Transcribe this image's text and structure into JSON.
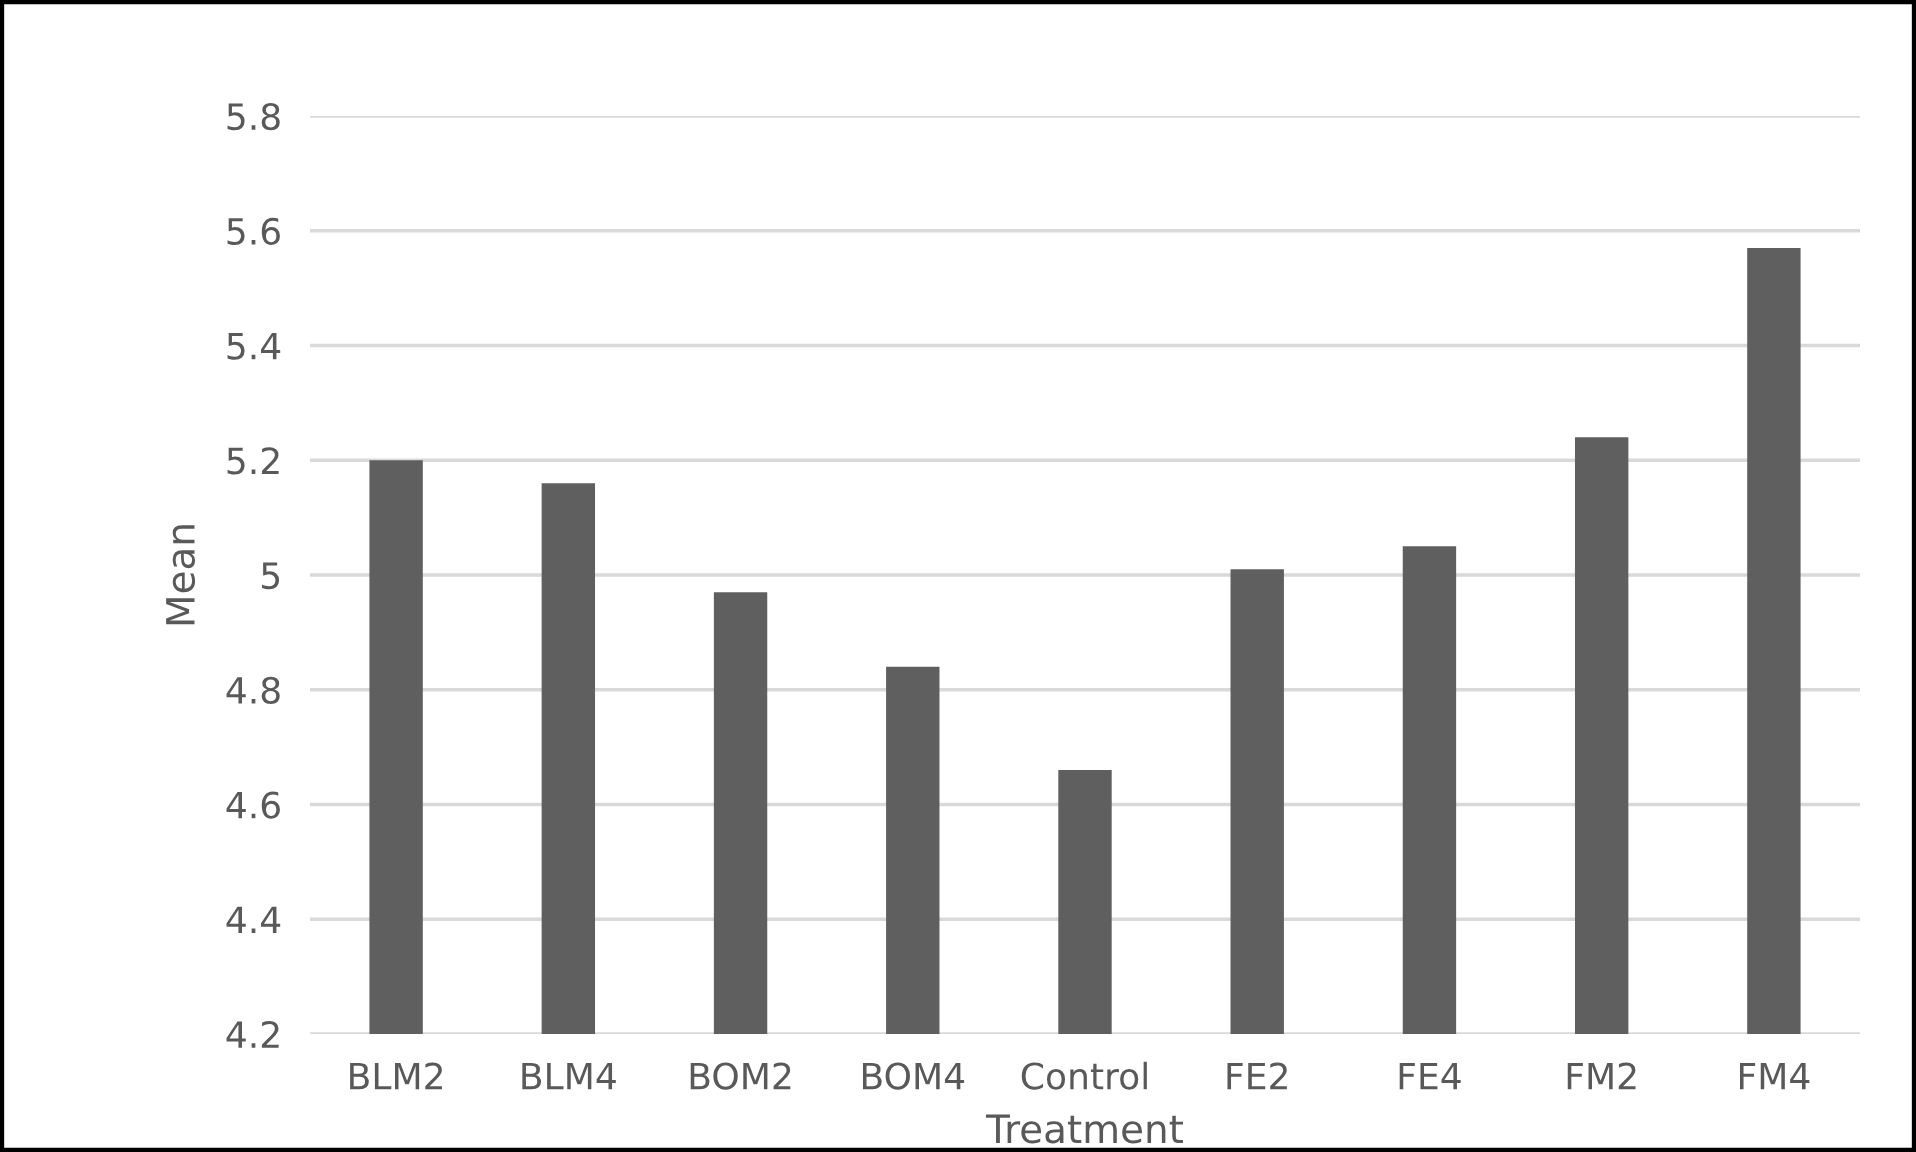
{
  "chart_data": {
    "type": "bar",
    "xlabel": "Treatment",
    "ylabel": "Mean",
    "categories": [
      "BLM2",
      "BLM4",
      "BOM2",
      "BOM4",
      "Control",
      "FE2",
      "FE4",
      "FM2",
      "FM4"
    ],
    "values": [
      5.2,
      5.16,
      4.97,
      4.84,
      4.66,
      5.01,
      5.05,
      5.24,
      5.57
    ],
    "color": "#5f5f5f",
    "ylim": [
      4.2,
      5.8
    ],
    "yticks": [
      4.2,
      4.4,
      4.6,
      4.8,
      {
        "value": 5.0,
        "label": "5"
      },
      5.2,
      5.4,
      5.6,
      5.8
    ],
    "grid": "y"
  }
}
